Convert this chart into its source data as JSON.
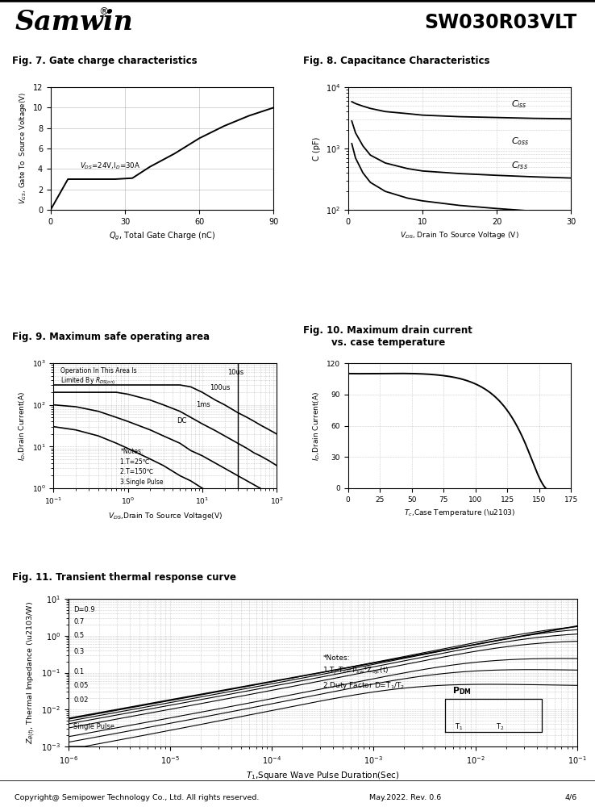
{
  "title_company": "Samwin",
  "title_part": "SW030R03VLT",
  "fig7_title": "Fig. 7. Gate charge characteristics",
  "fig8_title": "Fig. 8. Capacitance Characteristics",
  "fig9_title": "Fig. 9. Maximum safe operating area",
  "fig10_title": "Fig. 10. Maximum drain current\nvs. case temperature",
  "fig11_title": "Fig. 11. Transient thermal response curve",
  "footer": "Copyright@ Semipower Technology Co., Ltd. All rights reserved.",
  "footer_date": "May.2022. Rev. 0.6",
  "footer_page": "4/6",
  "bg_color": "#ffffff",
  "grid_color": "#999999",
  "line_color": "#000000",
  "fig7_qg": [
    0,
    7,
    10,
    26,
    33,
    40,
    50,
    60,
    70,
    80,
    90
  ],
  "fig7_vgs": [
    0,
    3.0,
    3.0,
    3.0,
    3.1,
    4.2,
    5.5,
    7.0,
    8.2,
    9.2,
    10.0
  ],
  "fig8_vds": [
    0.5,
    1,
    2,
    3,
    5,
    8,
    10,
    15,
    20,
    25,
    30
  ],
  "fig8_ciss": [
    5800,
    5400,
    4900,
    4500,
    4000,
    3700,
    3500,
    3300,
    3200,
    3100,
    3050
  ],
  "fig8_coss": [
    2800,
    1800,
    1100,
    780,
    580,
    470,
    430,
    390,
    365,
    345,
    330
  ],
  "fig8_crss": [
    1200,
    700,
    400,
    280,
    200,
    155,
    140,
    118,
    105,
    95,
    88
  ],
  "fig10_tc": [
    0,
    25,
    50,
    75,
    100,
    110,
    120,
    130,
    140,
    150,
    155
  ],
  "fig10_id": [
    110,
    110,
    110,
    108,
    100,
    93,
    82,
    65,
    40,
    10,
    0
  ],
  "footer_line_color": "#000000"
}
